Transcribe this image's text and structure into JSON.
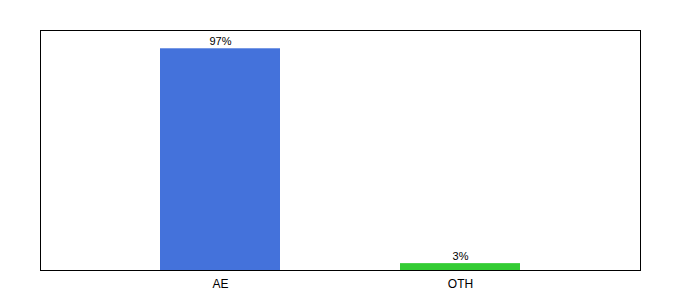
{
  "chart_data": {
    "type": "bar",
    "categories": [
      "AE",
      "OTH"
    ],
    "values": [
      97,
      3
    ],
    "value_labels": [
      "97%",
      "3%"
    ],
    "colors": [
      "#4472db",
      "#33cc33"
    ],
    "ylim": [
      0,
      105
    ],
    "data_labels": true,
    "tick_labels": "x",
    "grid": false
  }
}
